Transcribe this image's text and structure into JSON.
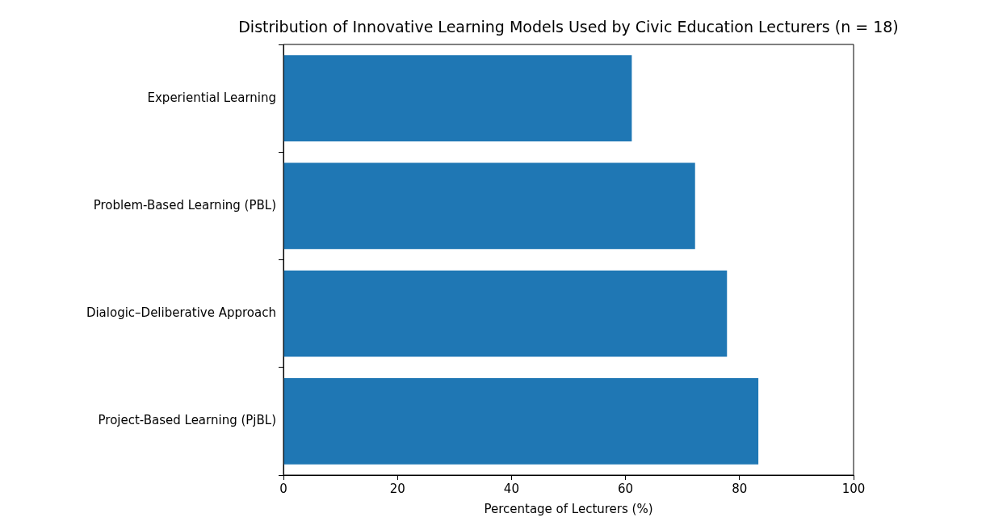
{
  "chart_data": {
    "type": "bar",
    "orientation": "horizontal",
    "title": "Distribution of Innovative Learning Models Used by Civic Education Lecturers (n = 18)",
    "xlabel": "Percentage of Lecturers (%)",
    "categories": [
      "Experiential Learning",
      "Problem-Based Learning (PBL)",
      "Dialogic–Deliberative Approach",
      "Project-Based Learning (PjBL)"
    ],
    "values": [
      61.1,
      72.2,
      77.8,
      83.3
    ],
    "color": "#1f77b4",
    "xlim": [
      0,
      100
    ],
    "xticks": [
      0,
      20,
      40,
      60,
      80,
      100
    ],
    "grid": false,
    "legend": false
  }
}
